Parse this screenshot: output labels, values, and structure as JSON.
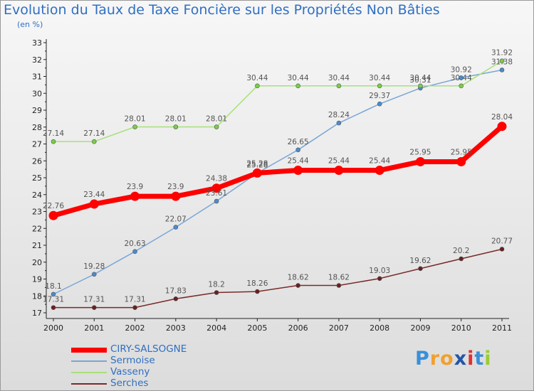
{
  "chart_data": {
    "type": "line",
    "title": "Evolution du Taux de Taxe Foncière sur les Propriétés Non Bâties",
    "subtitle": "(en %)",
    "categories": [
      "2000",
      "2001",
      "2002",
      "2003",
      "2004",
      "2005",
      "2006",
      "2007",
      "2008",
      "2009",
      "2010",
      "2011"
    ],
    "y_ticks": [
      "17",
      "18",
      "19",
      "20",
      "21",
      "22",
      "23",
      "24",
      "25",
      "26",
      "27",
      "28",
      "29",
      "30",
      "31",
      "32",
      "33"
    ],
    "ylim": [
      17,
      33
    ],
    "grid": false,
    "legend_placement": "bottom-left",
    "series": [
      {
        "name": "Sermoise",
        "color": "#7aa6d6",
        "markerColor": "#4a8ccf",
        "values": [
          18.1,
          19.28,
          20.63,
          22.07,
          23.61,
          25.28,
          26.65,
          28.24,
          29.37,
          30.31,
          30.92,
          31.38
        ],
        "labels": [
          "18.1",
          "19.28",
          "20.63",
          "22.07",
          "23.61",
          "25.28",
          "26.65",
          "28.24",
          "29.37",
          "30.31",
          "30.92",
          "31.38"
        ]
      },
      {
        "name": "Vasseny",
        "color": "#a8e07a",
        "markerColor": "#79cf45",
        "values": [
          27.14,
          27.14,
          28.01,
          28.01,
          28.01,
          30.44,
          30.44,
          30.44,
          30.44,
          30.44,
          30.44,
          31.92
        ],
        "labels": [
          "27.14",
          "27.14",
          "28.01",
          "28.01",
          "28.01",
          "30.44",
          "30.44",
          "30.44",
          "30.44",
          "30.44",
          "30.44",
          "31.92"
        ]
      },
      {
        "name": "Serches",
        "color": "#7a2a2a",
        "markerColor": "#6a1f1f",
        "values": [
          17.31,
          17.31,
          17.31,
          17.83,
          18.2,
          18.26,
          18.62,
          18.62,
          19.03,
          19.62,
          20.2,
          20.77
        ],
        "labels": [
          "17.31",
          "17.31",
          "17.31",
          "17.83",
          "18.2",
          "18.26",
          "18.62",
          "18.62",
          "19.03",
          "19.62",
          "20.2",
          "20.77"
        ]
      },
      {
        "name": "CIRY-SALSOGNE",
        "color": "#ff0000",
        "markerColor": "#ff0000",
        "values": [
          22.76,
          23.44,
          23.9,
          23.9,
          24.38,
          25.28,
          25.44,
          25.44,
          25.44,
          25.95,
          25.95,
          28.04
        ],
        "labels": [
          "22.76",
          "23.44",
          "23.9",
          "23.9",
          "24.38",
          "25.28",
          "25.44",
          "25.44",
          "25.44",
          "25.95",
          "25.95",
          "28.04"
        ]
      }
    ],
    "legend": [
      {
        "name": "CIRY-SALSOGNE",
        "color": "#ff0000",
        "width": 7
      },
      {
        "name": "Sermoise",
        "color": "#7aa6d6",
        "width": 1.5
      },
      {
        "name": "Vasseny",
        "color": "#a8e07a",
        "width": 1.5
      },
      {
        "name": "Serches",
        "color": "#7a2a2a",
        "width": 1.5
      }
    ]
  },
  "logo": {
    "letters": [
      "P",
      "r",
      "o",
      "x",
      "i",
      "t",
      "i"
    ],
    "colors": [
      "#3a8fd8",
      "#f0a030",
      "#f0a030",
      "#2255aa",
      "#e03030",
      "#3a8fd8",
      "#9acd32"
    ]
  }
}
